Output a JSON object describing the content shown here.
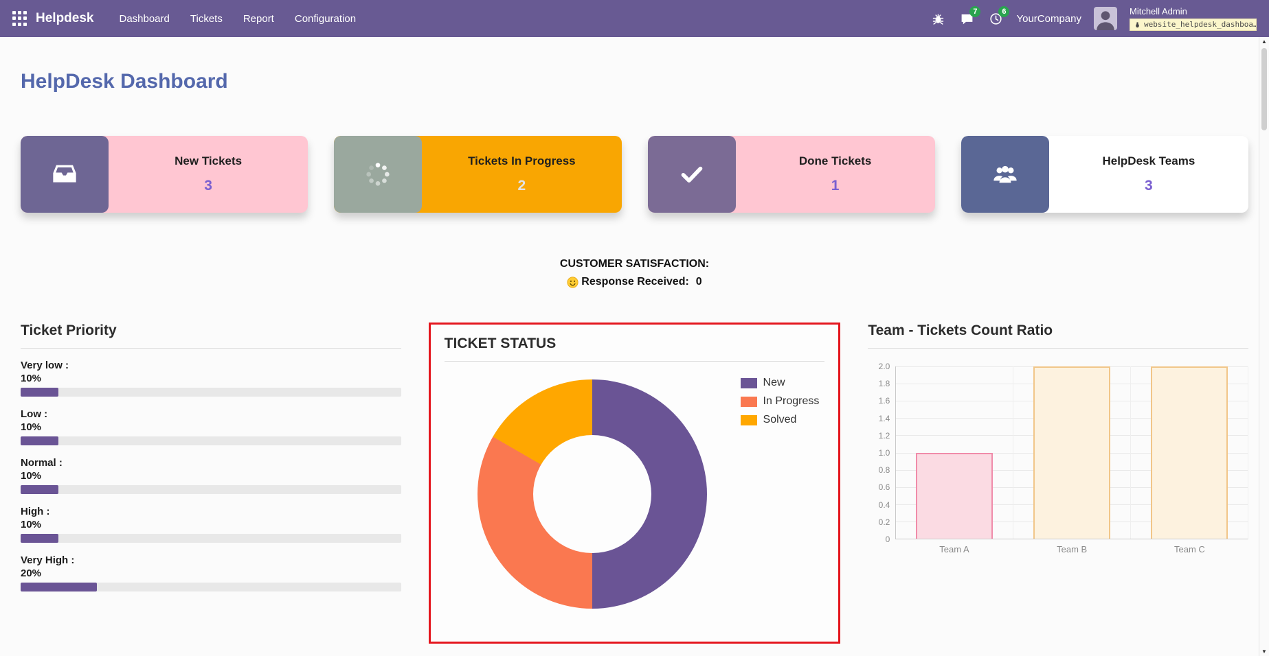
{
  "navbar": {
    "brand": "Helpdesk",
    "menu": [
      "Dashboard",
      "Tickets",
      "Report",
      "Configuration"
    ],
    "message_badge": "7",
    "activity_badge": "6",
    "company": "YourCompany",
    "user_name": "Mitchell Admin",
    "debug_module": "website_helpdesk_dashboa…",
    "bg_color": "#685a93"
  },
  "page": {
    "title": "HelpDesk Dashboard",
    "title_color": "#5468ac"
  },
  "kpi_cards": [
    {
      "label": "New Tickets",
      "value": "3",
      "icon": "inbox-icon",
      "icon_bg": "#6e6694",
      "body_bg": "#ffc6d2",
      "value_color": "#7a5fd0"
    },
    {
      "label": "Tickets In Progress",
      "value": "2",
      "icon": "spinner-icon",
      "icon_bg": "#9aa89e",
      "body_bg": "#f9a602",
      "value_color": "#e3e3e3"
    },
    {
      "label": "Done Tickets",
      "value": "1",
      "icon": "check-icon",
      "icon_bg": "#7b6b95",
      "body_bg": "#ffc6d2",
      "value_color": "#7a5fd0"
    },
    {
      "label": "HelpDesk Teams",
      "value": "3",
      "icon": "team-icon",
      "icon_bg": "#5a6795",
      "body_bg": "#ffffff",
      "value_color": "#7a5fd0"
    }
  ],
  "satisfaction": {
    "heading": "CUSTOMER SATISFACTION:",
    "response_label": "Response Received:",
    "response_value": "0"
  },
  "priority": {
    "title": "Ticket Priority",
    "bar_color": "#6A5495",
    "track_color": "#e8e8e8",
    "items": [
      {
        "label": "Very low :",
        "percent": "10%",
        "value": 10
      },
      {
        "label": "Low :",
        "percent": "10%",
        "value": 10
      },
      {
        "label": "Normal :",
        "percent": "10%",
        "value": 10
      },
      {
        "label": "High :",
        "percent": "10%",
        "value": 10
      },
      {
        "label": "Very High :",
        "percent": "20%",
        "value": 20
      }
    ]
  },
  "chart_data": [
    {
      "type": "pie",
      "donut": true,
      "title": "TICKET STATUS",
      "labels": [
        "New",
        "In Progress",
        "Solved"
      ],
      "values": [
        3,
        2,
        1
      ],
      "percentages": [
        50,
        33.3,
        16.7
      ],
      "colors": [
        "#6A5495",
        "#FA7850",
        "#FFA700"
      ],
      "legend_position": "top-right",
      "highlight_border": "#e4161e"
    },
    {
      "type": "bar",
      "title": "Team - Tickets Count Ratio",
      "categories": [
        "Team A",
        "Team B",
        "Team C"
      ],
      "values": [
        1,
        2,
        2
      ],
      "ylim": [
        0,
        2
      ],
      "ytick_step": 0.2,
      "grid": true,
      "bar_fills": [
        "#fbdbe3",
        "#fdf2df",
        "#fdf2df"
      ],
      "bar_borders": [
        "#f08caa",
        "#f1c689",
        "#f1c689"
      ]
    }
  ]
}
